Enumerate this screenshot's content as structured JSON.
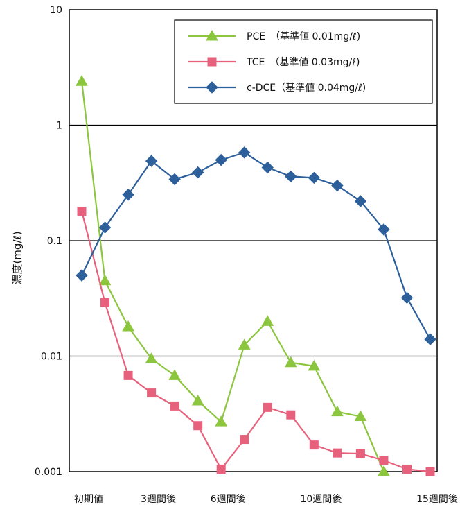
{
  "chart_data": {
    "type": "line",
    "ylabel": "濃度(mg/ℓ)",
    "yscale": "log",
    "ylim": [
      0.001,
      10
    ],
    "yticks": [
      "10",
      "1",
      "0.1",
      "0.01",
      "0.001"
    ],
    "grid": true,
    "legend_position": "top-right",
    "x_tick_labels": [
      {
        "x": 0,
        "label": "初期値"
      },
      {
        "x": 3,
        "label": "3週間後"
      },
      {
        "x": 6,
        "label": "6週間後"
      },
      {
        "x": 10,
        "label": "10週間後"
      },
      {
        "x": 15,
        "label": "15週間後"
      }
    ],
    "x": [
      0,
      1,
      2,
      3,
      4,
      5,
      6,
      7,
      8,
      9,
      10,
      11,
      12,
      13,
      14,
      15
    ],
    "series": [
      {
        "name": "PCE　（基準値 0.01mg/ℓ)",
        "color": "#8cc63f",
        "marker": "triangle",
        "values": [
          2.4,
          0.045,
          0.018,
          0.0095,
          0.0068,
          0.0041,
          0.0027,
          0.0125,
          0.02,
          0.0088,
          0.0082,
          0.0033,
          0.003,
          0.001,
          null,
          null
        ]
      },
      {
        "name": "TCE　（基準値 0.03mg/ℓ)",
        "color": "#e8617c",
        "marker": "square",
        "values": [
          0.18,
          0.029,
          0.0068,
          0.0048,
          0.0037,
          0.0025,
          0.00105,
          0.0019,
          0.0036,
          0.0031,
          0.0017,
          0.00145,
          0.00143,
          0.00125,
          0.00105,
          0.001
        ]
      },
      {
        "name": "c-DCE（基準値 0.04mg/ℓ)",
        "color": "#2d5f9a",
        "marker": "diamond",
        "values": [
          0.05,
          0.13,
          0.25,
          0.49,
          0.34,
          0.39,
          0.5,
          0.58,
          0.43,
          0.36,
          0.35,
          0.3,
          0.22,
          0.125,
          0.032,
          0.014
        ]
      }
    ]
  }
}
